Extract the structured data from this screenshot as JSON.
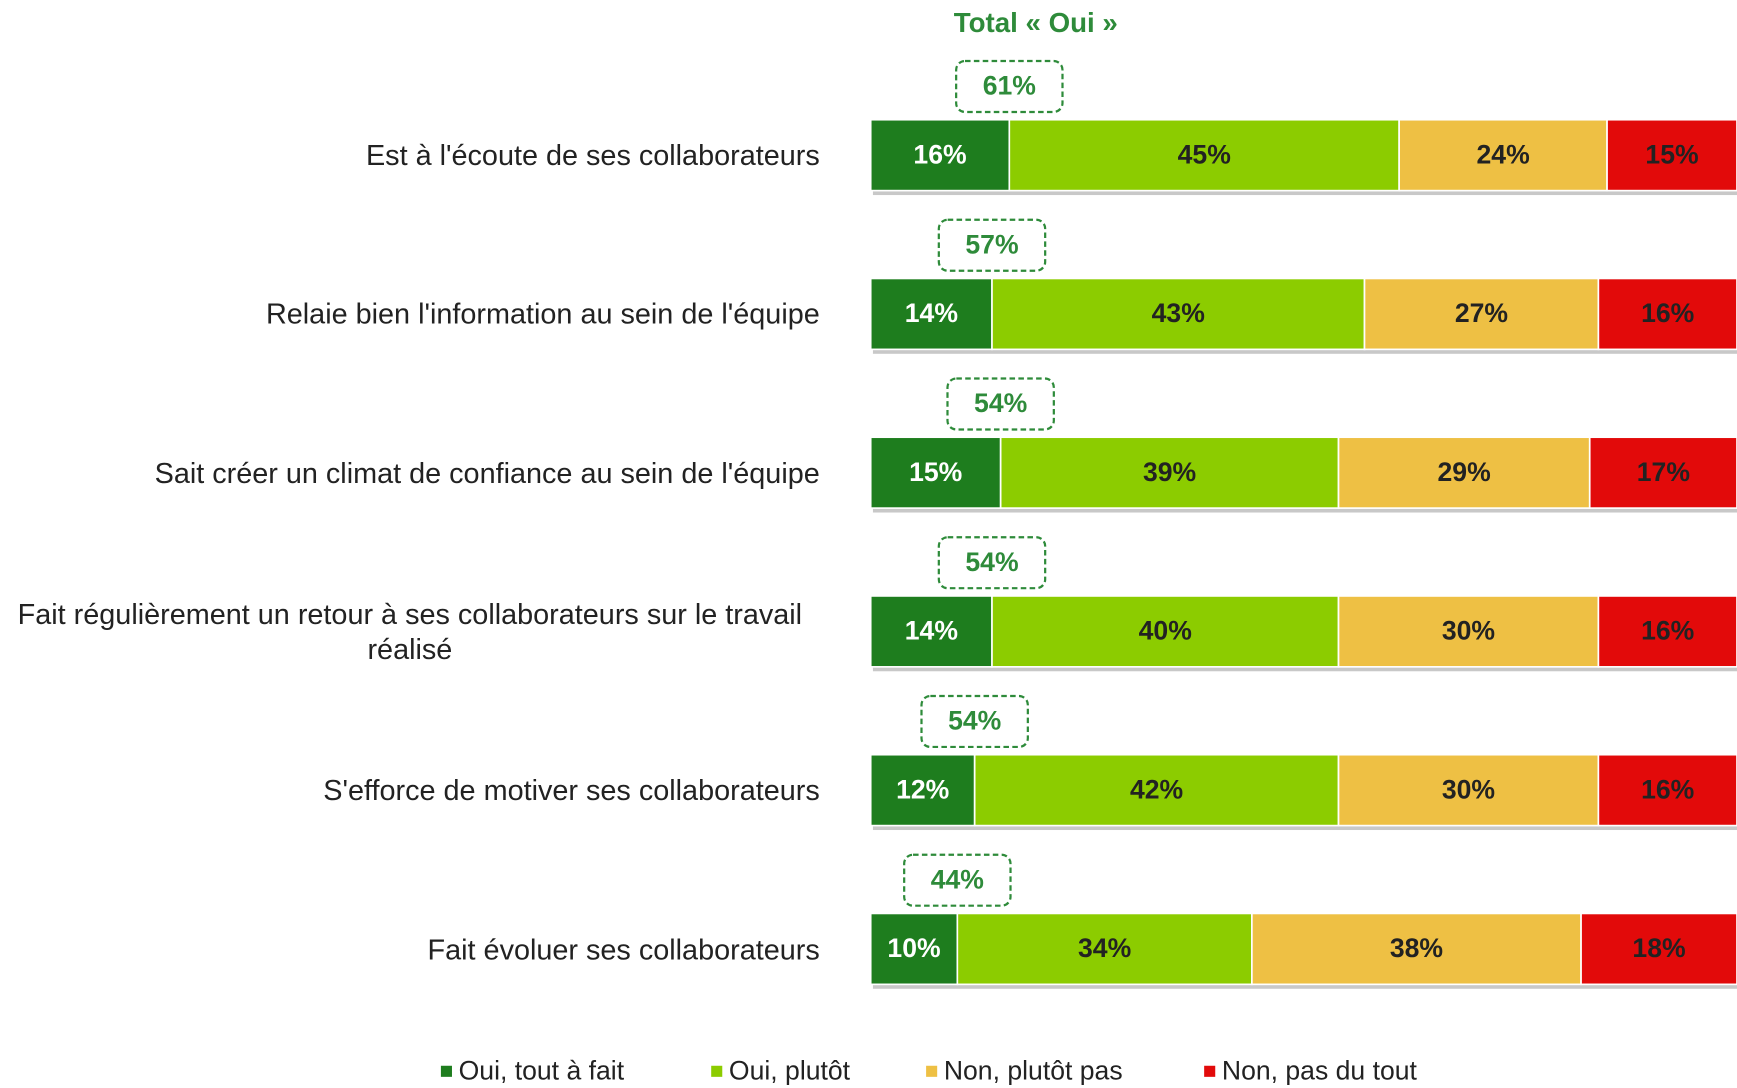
{
  "chart_data": {
    "type": "stacked-bar-horizontal",
    "categories": [
      "Est à l'écoute de ses collaborateurs",
      "Relaie bien l'information au sein de l'équipe",
      "Sait créer un climat de confiance au sein de l'équipe",
      "Fait régulièrement un retour à ses collaborateurs sur le travail réalisé",
      "S'efforce de motiver ses collaborateurs",
      "Fait évoluer ses collaborateurs"
    ],
    "xlim": [
      0,
      100
    ],
    "series": [
      {
        "name": "Oui, tout à fait",
        "color": "#1e7d1e",
        "values": [
          16,
          14,
          15,
          14,
          12,
          10
        ],
        "value_labels": [
          "16%",
          "14%",
          "15%",
          "14%",
          "12%",
          "10%"
        ]
      },
      {
        "name": "Oui, plutôt",
        "color": "#8ccc00",
        "values": [
          45,
          43,
          39,
          40,
          42,
          34
        ],
        "value_labels": [
          "45%",
          "43%",
          "39%",
          "40%",
          "42%",
          "34%"
        ]
      },
      {
        "name": "Non, plutôt pas",
        "color": "#eec044",
        "values": [
          24,
          27,
          29,
          30,
          30,
          38
        ],
        "value_labels": [
          "24%",
          "27%",
          "29%",
          "30%",
          "30%",
          "38%"
        ]
      },
      {
        "name": "Non, pas du tout",
        "color": "#e20a0a",
        "values": [
          15,
          16,
          17,
          16,
          16,
          18
        ],
        "value_labels": [
          "15%",
          "16%",
          "17%",
          "16%",
          "16%",
          "18%"
        ]
      }
    ],
    "total": {
      "title": "Total  « Oui »",
      "color": "#2e8b3a",
      "values": [
        61,
        57,
        54,
        54,
        54,
        44
      ],
      "value_labels": [
        "61%",
        "57%",
        "54%",
        "54%",
        "54%",
        "44%"
      ]
    },
    "legend": "bottom"
  }
}
